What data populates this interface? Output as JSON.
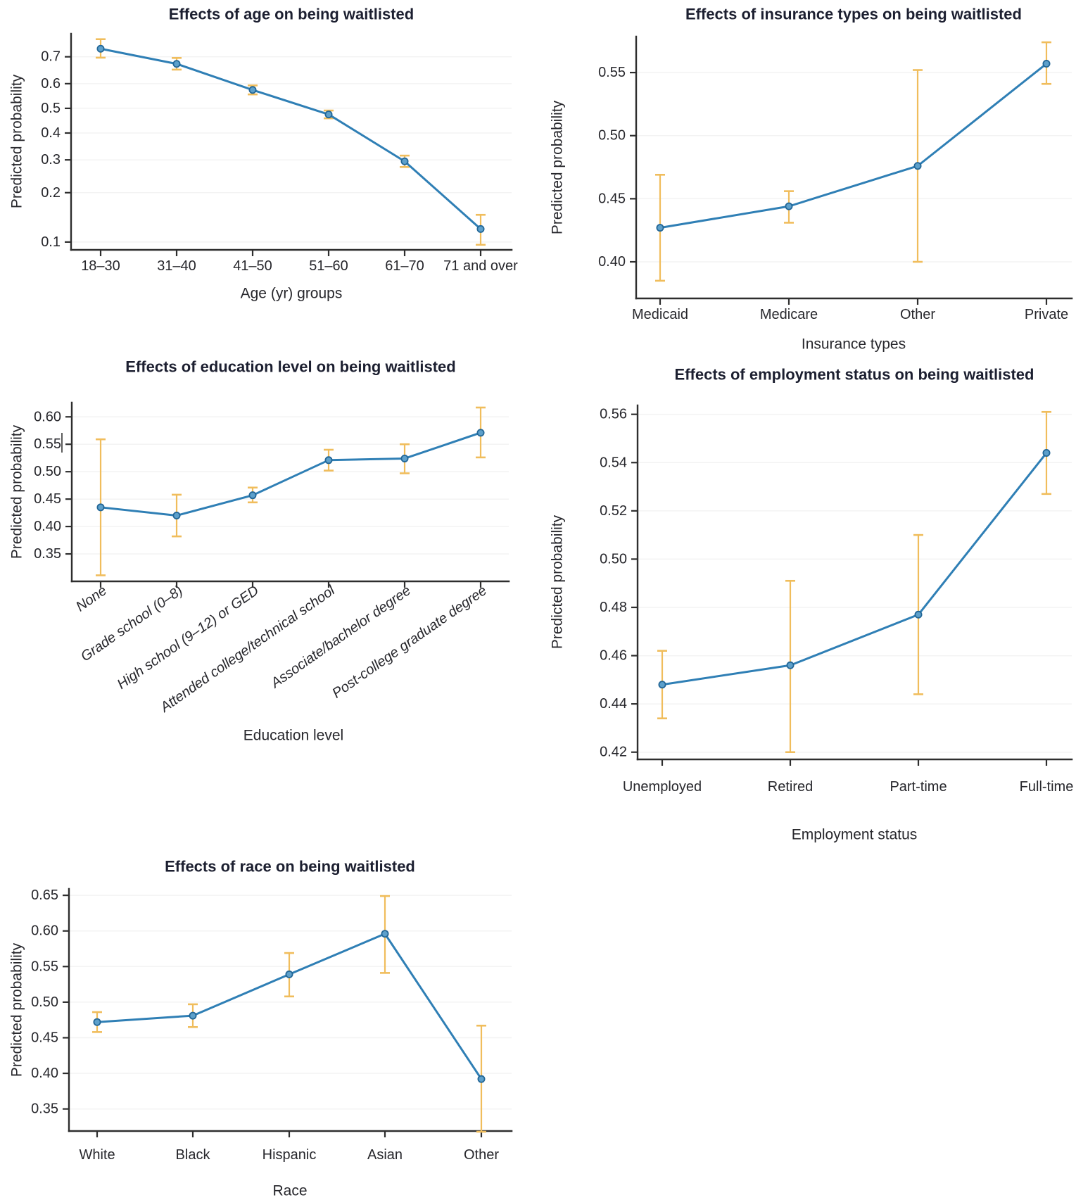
{
  "page": {
    "background": "#ffffff"
  },
  "colors": {
    "line": "#2f7fb5",
    "marker_fill": "#5da0cb",
    "marker_stroke": "#226696",
    "error_bar": "#f0bd5c",
    "axis": "#2e2e2e",
    "grid": "#f3f3f3",
    "title_text": "#1c1f30",
    "tick_text": "#27272c"
  },
  "chart_data": [
    {
      "id": "age",
      "type": "line",
      "title": "Effects of age on being waitlisted",
      "xlabel": "Age (yr) groups",
      "ylabel": "Predicted probability",
      "categories": [
        "18–30",
        "31–40",
        "41–50",
        "51–60",
        "61–70",
        "71 and over"
      ],
      "values": [
        0.727,
        0.675,
        0.575,
        0.475,
        0.295,
        0.121
      ],
      "ci_low": [
        0.697,
        0.654,
        0.557,
        0.459,
        0.276,
        0.096
      ],
      "ci_high": [
        0.757,
        0.696,
        0.593,
        0.491,
        0.315,
        0.148
      ],
      "yticks": [
        0.1,
        0.2,
        0.3,
        0.4,
        0.5,
        0.6,
        0.7
      ],
      "ytick_labels": [
        "0.1",
        "0.2",
        "0.3",
        "0.4",
        "0.5",
        "0.6",
        "0.7"
      ],
      "ylim": [
        0.089,
        0.773
      ],
      "yscale": "logit",
      "xtick_style": "horizontal",
      "grid": "faint",
      "legend": "none"
    },
    {
      "id": "insurance",
      "type": "line",
      "title": "Effects of insurance types on being waitlisted",
      "xlabel": "Insurance types",
      "ylabel": "Predicted probability",
      "categories": [
        "Medicaid",
        "Medicare",
        "Other",
        "Private"
      ],
      "values": [
        0.427,
        0.444,
        0.476,
        0.557
      ],
      "ci_low": [
        0.385,
        0.431,
        0.4,
        0.541
      ],
      "ci_high": [
        0.469,
        0.456,
        0.552,
        0.574
      ],
      "yticks": [
        0.4,
        0.45,
        0.5,
        0.55
      ],
      "ytick_labels": [
        "0.40",
        "0.45",
        "0.50",
        "0.55"
      ],
      "ylim": [
        0.371,
        0.5785
      ],
      "yscale": "linear",
      "xtick_style": "horizontal",
      "grid": "faint",
      "legend": "none"
    },
    {
      "id": "education",
      "type": "line",
      "title": "Effects of education level on being waitlisted",
      "xlabel": "Education level",
      "ylabel": "Predicted probability",
      "categories": [
        "None",
        "Grade school (0–8)",
        "High school (9–12) or GED",
        "Attended college/technical school",
        "Associate/bachelor degree",
        "Post-college graduate degree"
      ],
      "values": [
        0.435,
        0.42,
        0.457,
        0.521,
        0.524,
        0.571
      ],
      "ci_low": [
        0.311,
        0.382,
        0.444,
        0.502,
        0.497,
        0.526
      ],
      "ci_high": [
        0.559,
        0.458,
        0.471,
        0.54,
        0.55,
        0.617
      ],
      "yticks": [
        0.35,
        0.4,
        0.45,
        0.5,
        0.55,
        0.6
      ],
      "ytick_labels": [
        "0.35",
        "0.40",
        "0.45",
        "0.50",
        "0.55",
        "0.60"
      ],
      "ylim": [
        0.3,
        0.626
      ],
      "yscale": "linear",
      "xtick_style": "rotated-italic",
      "cursor_artifact": true,
      "grid": "faint",
      "legend": "none"
    },
    {
      "id": "employment",
      "type": "line",
      "title": "Effects of employment status on being waitlisted",
      "xlabel": "Employment status",
      "ylabel": "Predicted probability",
      "categories": [
        "Unemployed",
        "Retired",
        "Part-time",
        "Full-time"
      ],
      "values": [
        0.448,
        0.456,
        0.477,
        0.544
      ],
      "ci_low": [
        0.434,
        0.42,
        0.444,
        0.527
      ],
      "ci_high": [
        0.462,
        0.491,
        0.51,
        0.561
      ],
      "yticks": [
        0.42,
        0.44,
        0.46,
        0.48,
        0.5,
        0.52,
        0.54,
        0.56
      ],
      "ytick_labels": [
        "0.42",
        "0.44",
        "0.46",
        "0.48",
        "0.50",
        "0.52",
        "0.54",
        "0.56"
      ],
      "ylim": [
        0.417,
        0.5637
      ],
      "yscale": "linear",
      "xtick_style": "horizontal",
      "grid": "faint",
      "legend": "none"
    },
    {
      "id": "race",
      "type": "line",
      "title": "Effects of race on being waitlisted",
      "xlabel": "Race",
      "ylabel": "Predicted probability",
      "categories": [
        "White",
        "Black",
        "Hispanic",
        "Asian",
        "Other"
      ],
      "values": [
        0.472,
        0.481,
        0.539,
        0.596,
        0.392
      ],
      "ci_low": [
        0.458,
        0.465,
        0.508,
        0.541,
        0.318
      ],
      "ci_high": [
        0.486,
        0.497,
        0.569,
        0.649,
        0.467
      ],
      "yticks": [
        0.35,
        0.4,
        0.45,
        0.5,
        0.55,
        0.6,
        0.65
      ],
      "ytick_labels": [
        "0.35",
        "0.40",
        "0.45",
        "0.50",
        "0.55",
        "0.60",
        "0.65"
      ],
      "ylim": [
        0.319,
        0.659
      ],
      "yscale": "linear",
      "xtick_style": "horizontal",
      "grid": "faint",
      "legend": "none"
    }
  ]
}
